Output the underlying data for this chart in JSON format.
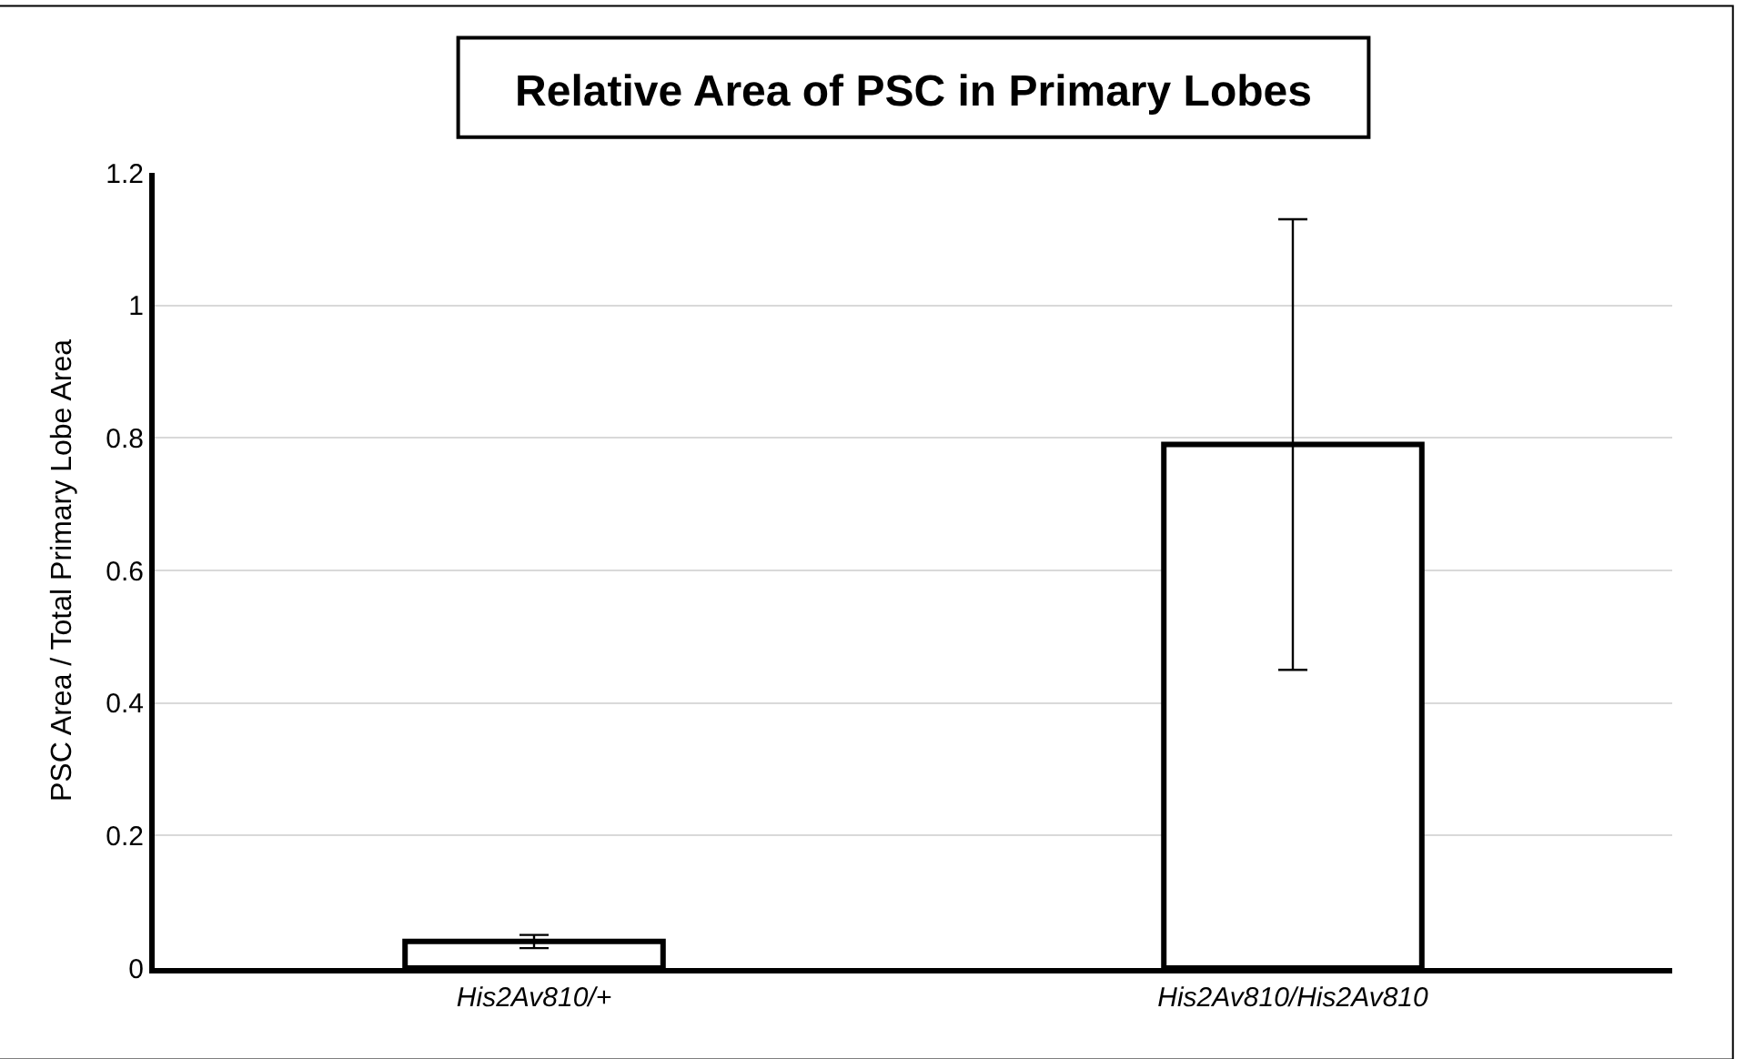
{
  "chart_data": {
    "type": "bar",
    "title": "Relative Area of PSC in Primary Lobes",
    "ylabel": "PSC Area / Total Primary Lobe Area",
    "categories": [
      "His2Av810/+",
      "His2Av810/His2Av810"
    ],
    "values": [
      0.04,
      0.79
    ],
    "errors": [
      0.01,
      0.34
    ],
    "color": "#ffffff",
    "ylim": [
      0,
      1.2
    ],
    "yticks": [
      0,
      0.2,
      0.4,
      0.6,
      0.8,
      1,
      1.2
    ],
    "grid": "y"
  }
}
